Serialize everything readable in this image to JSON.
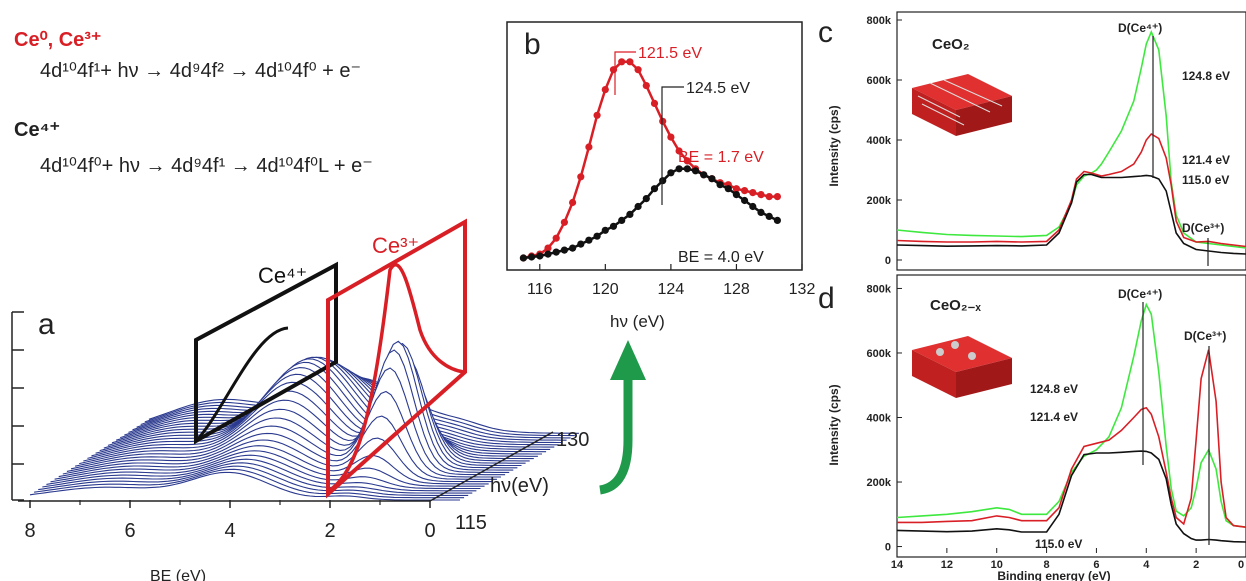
{
  "equations": {
    "ce0_label": "Ce⁰, Ce³⁺",
    "ce0_eq": "4d¹⁰4f¹+ hν → 4d⁹4f² → 4d¹⁰4f⁰ + e⁻",
    "ce4_label": "Ce⁴⁺",
    "ce4_eq": "4d¹⁰4f⁰+ hν → 4d⁹4f¹ → 4d¹⁰4f⁰L + e⁻"
  },
  "colors": {
    "red": "#d91f26",
    "black": "#111111",
    "green": "#3ee83e",
    "blue": "#2b3a8f",
    "arrow_green": "#1f9a4a"
  },
  "chart_data": [
    {
      "panel": "a",
      "type": "area",
      "title": "",
      "xlabel": "BE (eV)",
      "ylabel": "",
      "zlabel": "hν(eV)",
      "xticks": [
        "8",
        "6",
        "4",
        "2",
        "0"
      ],
      "xlim": [
        8,
        0
      ],
      "zticks": [
        "115",
        "130"
      ],
      "zlim": [
        115,
        130
      ],
      "region_labels": [
        "Ce⁴⁺",
        "Ce³⁺"
      ],
      "series": [
        {
          "name": "Ce⁴⁺",
          "center_be": 4.0
        },
        {
          "name": "Ce³⁺",
          "center_be": 1.7
        }
      ],
      "curve_count": 30
    },
    {
      "panel": "b",
      "type": "scatter",
      "title": "",
      "xlabel": "hν (eV)",
      "ylabel": "",
      "xticks": [
        "116",
        "120",
        "124",
        "128",
        "132"
      ],
      "xlim": [
        114,
        132
      ],
      "ylim": [
        0,
        1.1
      ],
      "series": [
        {
          "name": "BE = 1.7 eV",
          "color": "red",
          "x": [
            115,
            115.5,
            116,
            116.5,
            117,
            117.5,
            118,
            118.5,
            119,
            119.5,
            120,
            120.5,
            121,
            121.5,
            122,
            122.5,
            123,
            123.5,
            124,
            124.5,
            125,
            125.5,
            126,
            126.5,
            127,
            127.5,
            128,
            128.5,
            129,
            129.5,
            130,
            130.5
          ],
          "y": [
            0.01,
            0.02,
            0.03,
            0.06,
            0.11,
            0.19,
            0.29,
            0.42,
            0.57,
            0.73,
            0.86,
            0.96,
            1.0,
            1.0,
            0.96,
            0.88,
            0.79,
            0.7,
            0.62,
            0.55,
            0.5,
            0.46,
            0.43,
            0.41,
            0.39,
            0.38,
            0.36,
            0.35,
            0.34,
            0.33,
            0.32,
            0.32
          ]
        },
        {
          "name": "BE = 4.0 eV",
          "color": "black",
          "x": [
            115,
            115.5,
            116,
            116.5,
            117,
            117.5,
            118,
            118.5,
            119,
            119.5,
            120,
            120.5,
            121,
            121.5,
            122,
            122.5,
            123,
            123.5,
            124,
            124.5,
            125,
            125.5,
            126,
            126.5,
            127,
            127.5,
            128,
            128.5,
            129,
            129.5,
            130,
            130.5
          ],
          "y": [
            0.01,
            0.015,
            0.02,
            0.03,
            0.04,
            0.05,
            0.06,
            0.08,
            0.1,
            0.12,
            0.15,
            0.17,
            0.2,
            0.23,
            0.27,
            0.31,
            0.36,
            0.4,
            0.44,
            0.46,
            0.46,
            0.45,
            0.43,
            0.41,
            0.38,
            0.36,
            0.33,
            0.3,
            0.27,
            0.24,
            0.22,
            0.2
          ]
        }
      ],
      "annotations": [
        "121.5 eV",
        "124.5 eV",
        "BE = 1.7 eV",
        "BE = 4.0 eV"
      ]
    },
    {
      "panel": "c",
      "type": "line",
      "title": "CeO₂",
      "xlabel": "Binding energy (eV)",
      "ylabel": "Intensity (cps)",
      "yticks": [
        "0",
        "200k",
        "400k",
        "600k",
        "800k"
      ],
      "ylim": [
        -20000,
        820000
      ],
      "xlim": [
        14,
        0
      ],
      "series": [
        {
          "name": "124.8 eV",
          "color": "green",
          "x": [
            14,
            13,
            12,
            11,
            10,
            9,
            8,
            7.5,
            7,
            6.8,
            6.5,
            6.2,
            6,
            5.8,
            5.5,
            5,
            4.5,
            4.2,
            4,
            3.8,
            3.5,
            3.2,
            3,
            2.8,
            2.5,
            2,
            1.5,
            1,
            0.5,
            0
          ],
          "y": [
            100000,
            92000,
            85000,
            82000,
            80000,
            78000,
            82000,
            110000,
            190000,
            250000,
            280000,
            290000,
            300000,
            320000,
            360000,
            430000,
            530000,
            640000,
            720000,
            760000,
            700000,
            480000,
            260000,
            150000,
            90000,
            60000,
            55000,
            50000,
            45000,
            40000
          ]
        },
        {
          "name": "121.4 eV",
          "color": "red",
          "x": [
            14,
            13,
            12,
            11,
            10,
            9,
            8,
            7.5,
            7,
            6.8,
            6.5,
            6.2,
            6,
            5.8,
            5.5,
            5,
            4.5,
            4.2,
            4,
            3.8,
            3.5,
            3.2,
            3,
            2.8,
            2.5,
            2,
            1.5,
            1,
            0.5,
            0
          ],
          "y": [
            65000,
            62000,
            60000,
            60000,
            62000,
            60000,
            62000,
            100000,
            200000,
            270000,
            295000,
            290000,
            285000,
            280000,
            285000,
            295000,
            320000,
            360000,
            400000,
            420000,
            405000,
            340000,
            250000,
            130000,
            75000,
            60000,
            62000,
            55000,
            50000,
            45000
          ]
        },
        {
          "name": "115.0 eV",
          "color": "black",
          "x": [
            14,
            13,
            12,
            11,
            10,
            9,
            8,
            7.5,
            7,
            6.8,
            6.5,
            6.2,
            6,
            5.8,
            5.5,
            5,
            4.5,
            4.2,
            4,
            3.8,
            3.5,
            3.2,
            3,
            2.8,
            2.5,
            2,
            1.5,
            1,
            0.5,
            0
          ],
          "y": [
            50000,
            48000,
            46000,
            47000,
            48000,
            47000,
            50000,
            90000,
            190000,
            260000,
            285000,
            285000,
            280000,
            275000,
            275000,
            275000,
            278000,
            280000,
            282000,
            280000,
            270000,
            230000,
            160000,
            90000,
            55000,
            35000,
            30000,
            25000,
            22000,
            20000
          ]
        }
      ],
      "annotations": [
        "D(Ce⁴⁺)",
        "124.8 eV",
        "121.4 eV",
        "115.0 eV",
        "D(Ce³⁺)"
      ]
    },
    {
      "panel": "d",
      "type": "line",
      "title": "CeO₂₋ₓ",
      "xlabel": "Binding energy (eV)",
      "ylabel": "Intensity (cps)",
      "xticks": [
        "14",
        "12",
        "10",
        "8",
        "6",
        "4",
        "2",
        "0"
      ],
      "yticks": [
        "0",
        "200k",
        "400k",
        "600k",
        "800k"
      ],
      "ylim": [
        -20000,
        820000
      ],
      "xlim": [
        14,
        0
      ],
      "series": [
        {
          "name": "124.8 eV",
          "color": "green",
          "x": [
            14,
            13,
            12,
            11,
            10,
            9.5,
            9,
            8,
            7.5,
            7,
            6.5,
            6,
            5.5,
            5,
            4.5,
            4.2,
            4,
            3.8,
            3.5,
            3.2,
            3,
            2.8,
            2.5,
            2.2,
            2,
            1.8,
            1.5,
            1.2,
            1,
            0.8,
            0.5,
            0
          ],
          "y": [
            90000,
            95000,
            100000,
            108000,
            120000,
            115000,
            100000,
            100000,
            140000,
            230000,
            280000,
            300000,
            340000,
            430000,
            590000,
            700000,
            750000,
            720000,
            540000,
            310000,
            180000,
            110000,
            95000,
            120000,
            180000,
            260000,
            300000,
            240000,
            140000,
            80000,
            65000,
            60000
          ]
        },
        {
          "name": "121.4 eV",
          "color": "red",
          "x": [
            14,
            13,
            12,
            11,
            10,
            9.5,
            9,
            8,
            7.5,
            7,
            6.5,
            6,
            5.5,
            5,
            4.5,
            4.2,
            4,
            3.8,
            3.5,
            3.2,
            3,
            2.8,
            2.5,
            2.2,
            2,
            1.8,
            1.5,
            1.2,
            1,
            0.8,
            0.5,
            0
          ],
          "y": [
            75000,
            75000,
            78000,
            80000,
            95000,
            90000,
            80000,
            80000,
            120000,
            240000,
            310000,
            320000,
            330000,
            360000,
            400000,
            425000,
            430000,
            410000,
            340000,
            230000,
            150000,
            90000,
            70000,
            150000,
            330000,
            520000,
            610000,
            450000,
            200000,
            90000,
            65000,
            60000
          ]
        },
        {
          "name": "115.0 eV",
          "color": "black",
          "x": [
            14,
            13,
            12,
            11,
            10,
            9.5,
            9,
            8,
            7.5,
            7,
            6.5,
            6,
            5.5,
            5,
            4.5,
            4.2,
            4,
            3.8,
            3.5,
            3.2,
            3,
            2.8,
            2.5,
            2.2,
            2,
            1.8,
            1.5,
            1.2,
            1,
            0.8,
            0.5,
            0
          ],
          "y": [
            50000,
            48000,
            46000,
            48000,
            55000,
            52000,
            45000,
            45000,
            100000,
            220000,
            285000,
            290000,
            290000,
            292000,
            295000,
            296000,
            295000,
            290000,
            270000,
            210000,
            130000,
            70000,
            40000,
            25000,
            20000,
            20000,
            22000,
            20000,
            18000,
            17000,
            15000,
            14000
          ]
        }
      ],
      "annotations": [
        "D(Ce⁴⁺)",
        "D(Ce³⁺)",
        "124.8 eV",
        "121.4 eV",
        "115.0 eV"
      ]
    }
  ],
  "panel_letters": {
    "a": "a",
    "b": "b",
    "c": "c",
    "d": "d"
  }
}
